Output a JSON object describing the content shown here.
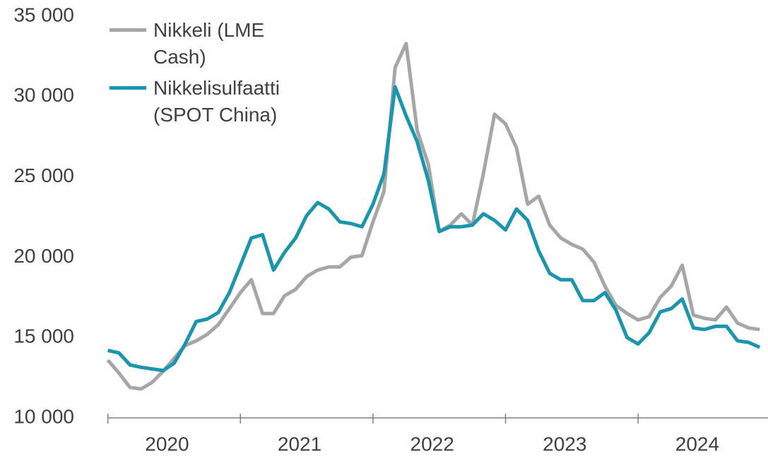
{
  "chart_data": {
    "type": "line",
    "x": [
      2020,
      2020.083,
      2020.167,
      2020.25,
      2020.333,
      2020.417,
      2020.5,
      2020.583,
      2020.667,
      2020.75,
      2020.833,
      2020.917,
      2021,
      2021.083,
      2021.167,
      2021.25,
      2021.333,
      2021.417,
      2021.5,
      2021.583,
      2021.667,
      2021.75,
      2021.833,
      2021.917,
      2022,
      2022.083,
      2022.167,
      2022.25,
      2022.333,
      2022.417,
      2022.5,
      2022.583,
      2022.667,
      2022.75,
      2022.833,
      2022.917,
      2023,
      2023.083,
      2023.167,
      2023.25,
      2023.333,
      2023.417,
      2023.5,
      2023.583,
      2023.667,
      2023.75,
      2023.833,
      2023.917,
      2024,
      2024.083,
      2024.167,
      2024.25,
      2024.333,
      2024.417,
      2024.5,
      2024.583,
      2024.667,
      2024.75,
      2024.833,
      2024.917
    ],
    "series": [
      {
        "name": "Nikkeli (LME Cash)",
        "color": "#a6a6a6",
        "values": [
          13600,
          12800,
          11900,
          11800,
          12200,
          12900,
          13700,
          14500,
          14800,
          15200,
          15800,
          16800,
          17800,
          18600,
          16500,
          16500,
          17600,
          18000,
          18800,
          19200,
          19400,
          19400,
          20000,
          20100,
          22200,
          24100,
          31800,
          33300,
          27900,
          25800,
          21600,
          22000,
          22700,
          22000,
          25200,
          28900,
          28300,
          26800,
          23300,
          23800,
          22000,
          21200,
          20800,
          20500,
          19700,
          18200,
          17000,
          16500,
          16100,
          16300,
          17500,
          18200,
          19500,
          16400,
          16200,
          16100,
          16900,
          15900,
          15600,
          15500
        ]
      },
      {
        "name": "Nikkelisulfaatti (SPOT China)",
        "color": "#1a95ad",
        "values": [
          14200,
          14050,
          13300,
          13150,
          13050,
          12950,
          13400,
          14600,
          16000,
          16150,
          16550,
          17800,
          19500,
          21200,
          21400,
          19200,
          20300,
          21200,
          22600,
          23400,
          23000,
          22200,
          22100,
          21900,
          23300,
          25200,
          30600,
          28800,
          27200,
          24800,
          21600,
          21900,
          21900,
          22000,
          22700,
          22300,
          21700,
          23000,
          22300,
          20400,
          19000,
          18600,
          18600,
          17300,
          17300,
          17800,
          16700,
          15000,
          14600,
          15300,
          16600,
          16800,
          17400,
          15600,
          15500,
          15700,
          15700,
          14800,
          14700,
          14400
        ]
      }
    ],
    "xlim": [
      2019.97,
      2024.98
    ],
    "xticks": [
      2020,
      2021,
      2022,
      2023,
      2024
    ],
    "ylim": [
      10000,
      35000
    ],
    "yticks": [
      {
        "value": 10000,
        "label": "10 000"
      },
      {
        "value": 15000,
        "label": "15 000"
      },
      {
        "value": 20000,
        "label": "20 000"
      },
      {
        "value": 25000,
        "label": "25 000"
      },
      {
        "value": 30000,
        "label": "30 000"
      },
      {
        "value": 35000,
        "label": "35 000"
      }
    ],
    "grid": false,
    "legend": "upper left"
  }
}
